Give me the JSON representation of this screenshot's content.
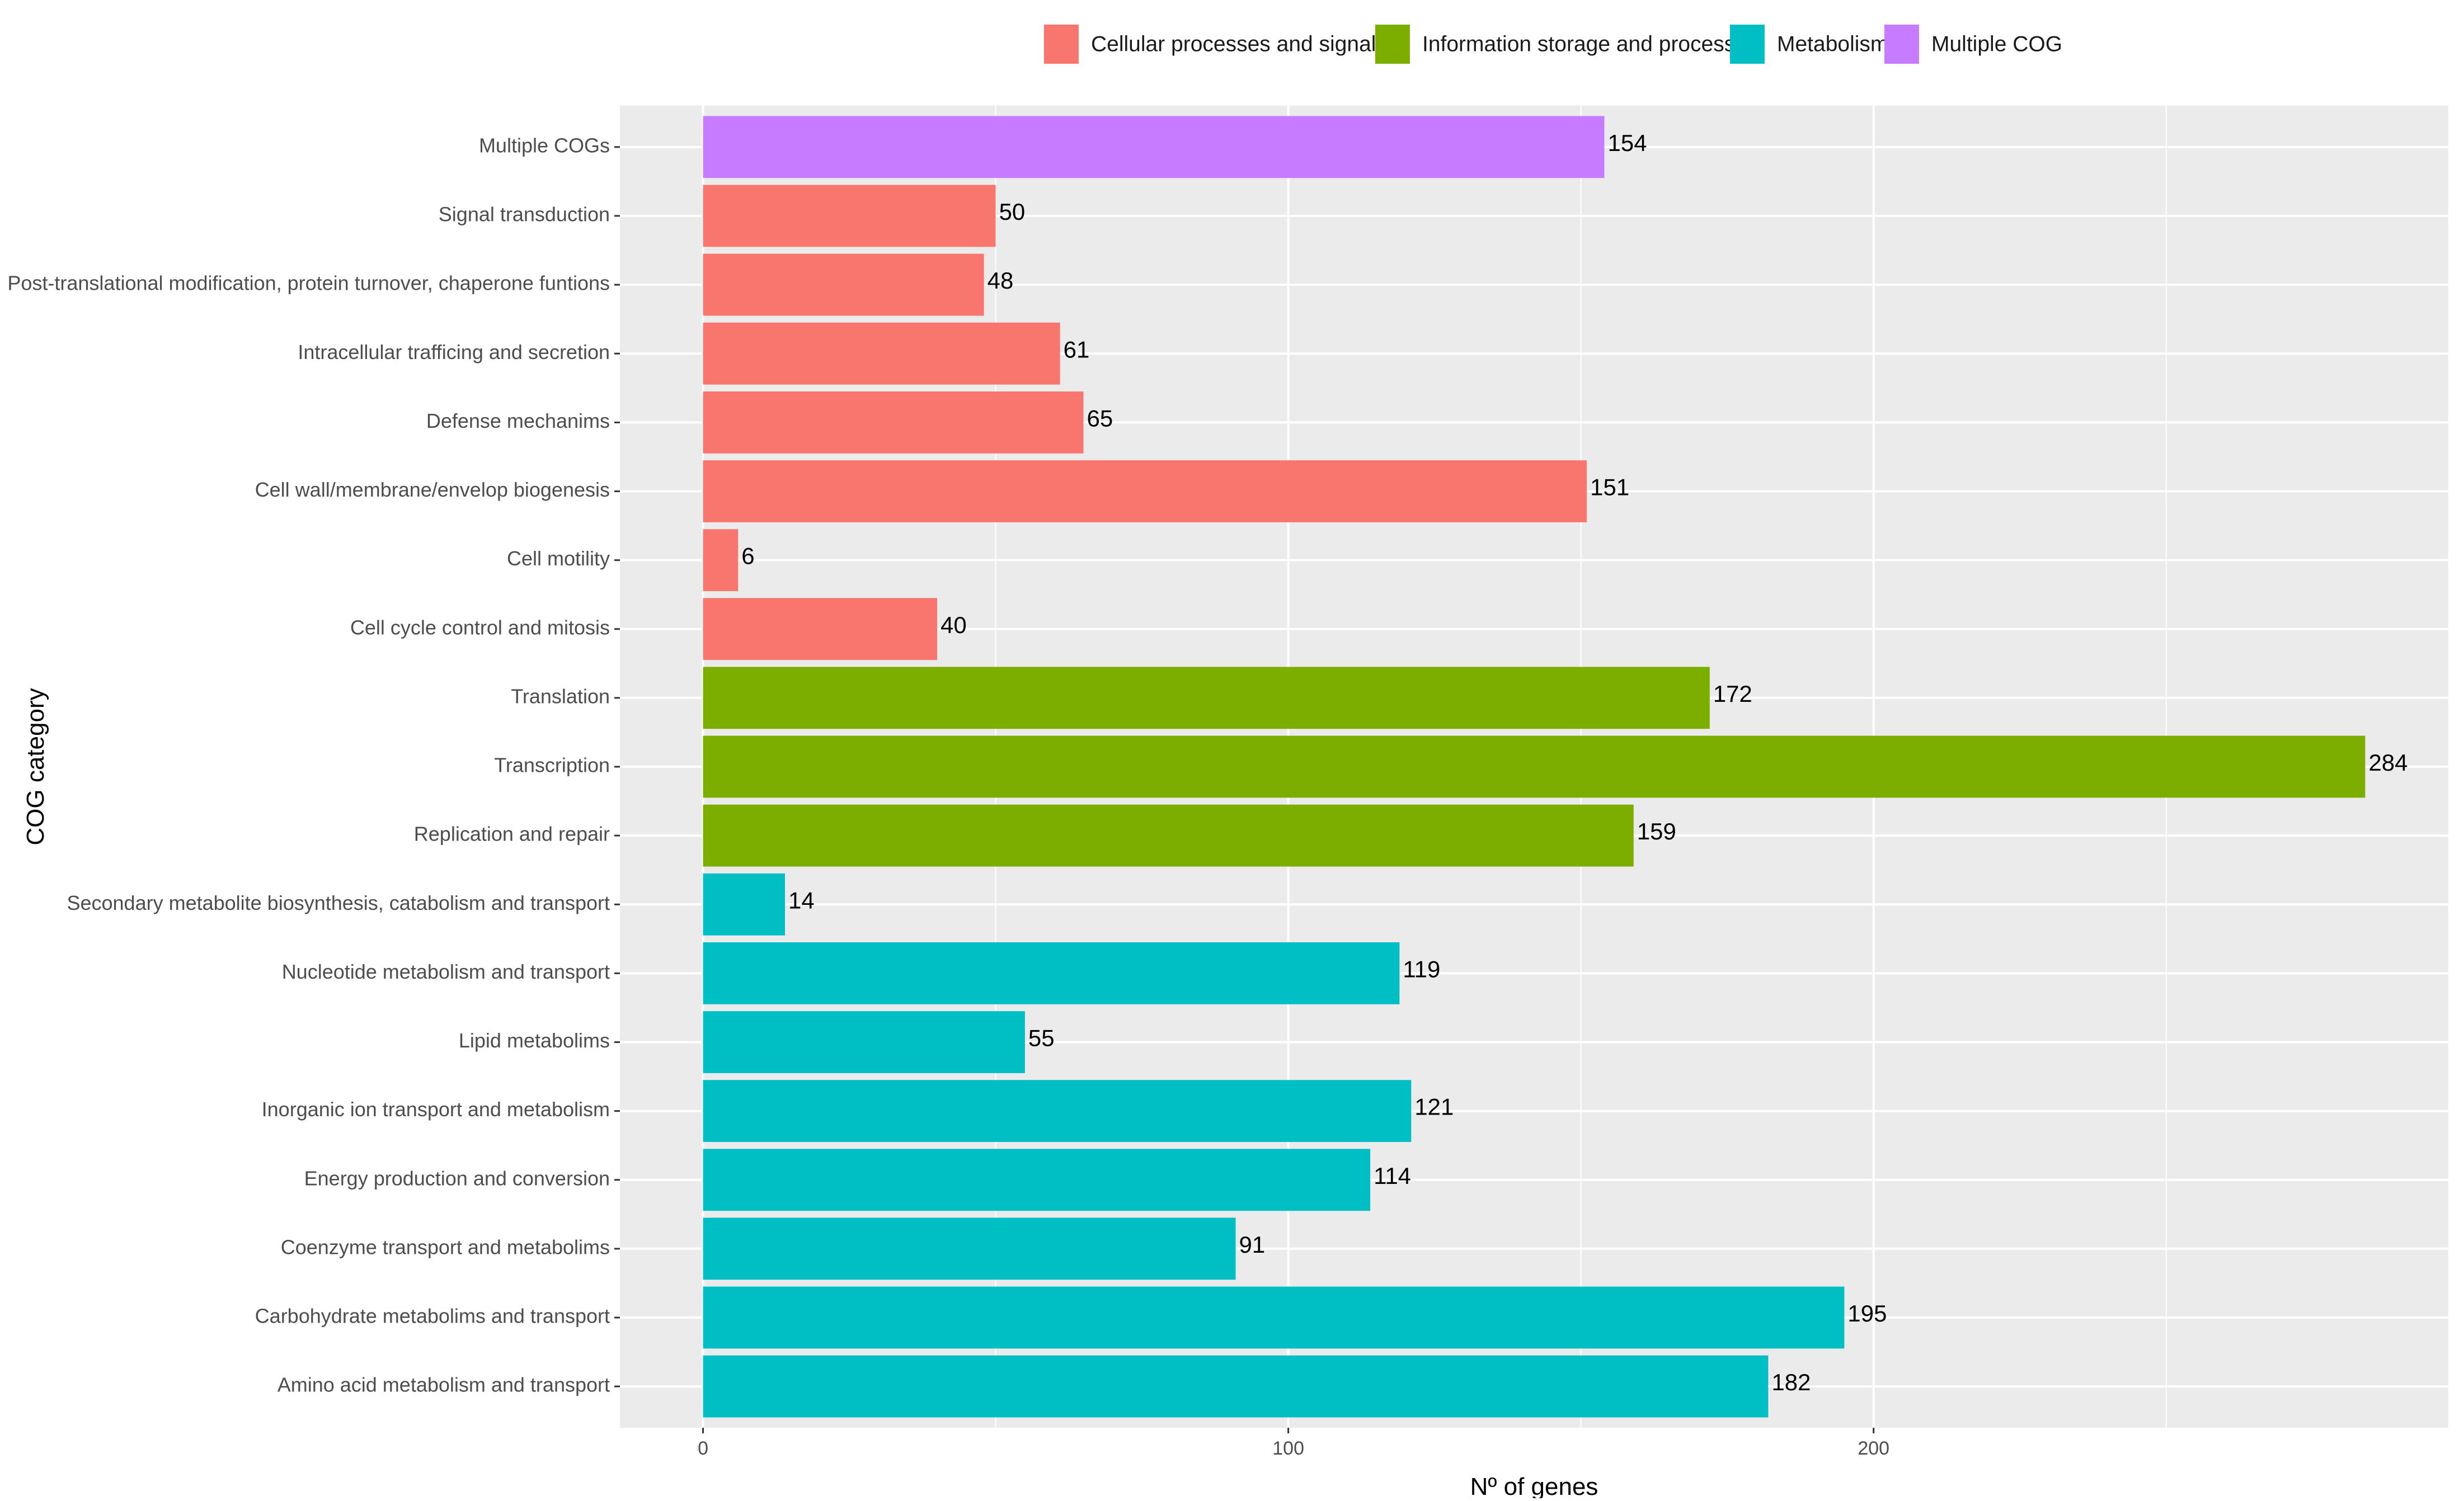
{
  "chart_data": {
    "type": "bar",
    "orientation": "horizontal",
    "title": "",
    "xlabel": "Nº of genes",
    "ylabel": "COG category",
    "xlim": [
      -14.2,
      298.2
    ],
    "xticks": [
      0,
      100,
      200
    ],
    "grid": true,
    "legend_position": "top",
    "legend": [
      {
        "name": "Cellular processes and signaling",
        "color": "#F8766D"
      },
      {
        "name": "Information storage and processing",
        "color": "#7CAE00"
      },
      {
        "name": "Metabolism",
        "color": "#00BFC4"
      },
      {
        "name": "Multiple COG",
        "color": "#C77CFF"
      }
    ],
    "categories": [
      "Multiple COGs",
      "Signal transduction",
      "Post-translational modification, protein turnover, chaperone funtions",
      "Intracellular trafficing and secretion",
      "Defense mechanims",
      "Cell wall/membrane/envelop biogenesis",
      "Cell motility",
      "Cell cycle control and mitosis",
      "Translation",
      "Transcription",
      "Replication and repair",
      "Secondary metabolite biosynthesis, catabolism and transport",
      "Nucleotide metabolism and transport",
      "Lipid metabolims",
      "Inorganic ion transport and metabolism",
      "Energy production and conversion",
      "Coenzyme transport and metabolims",
      "Carbohydrate metabolims and transport",
      "Amino acid metabolism and transport"
    ],
    "values": [
      154,
      50,
      48,
      61,
      65,
      151,
      6,
      40,
      172,
      284,
      159,
      14,
      119,
      55,
      121,
      114,
      91,
      195,
      182
    ],
    "groups": [
      "Multiple COG",
      "Cellular processes and signaling",
      "Cellular processes and signaling",
      "Cellular processes and signaling",
      "Cellular processes and signaling",
      "Cellular processes and signaling",
      "Cellular processes and signaling",
      "Cellular processes and signaling",
      "Information storage and processing",
      "Information storage and processing",
      "Information storage and processing",
      "Metabolism",
      "Metabolism",
      "Metabolism",
      "Metabolism",
      "Metabolism",
      "Metabolism",
      "Metabolism",
      "Metabolism"
    ],
    "colors": {
      "panel_background": "#EBEBEB",
      "grid_line": "#FFFFFF",
      "axis_tick": "#333333"
    }
  }
}
